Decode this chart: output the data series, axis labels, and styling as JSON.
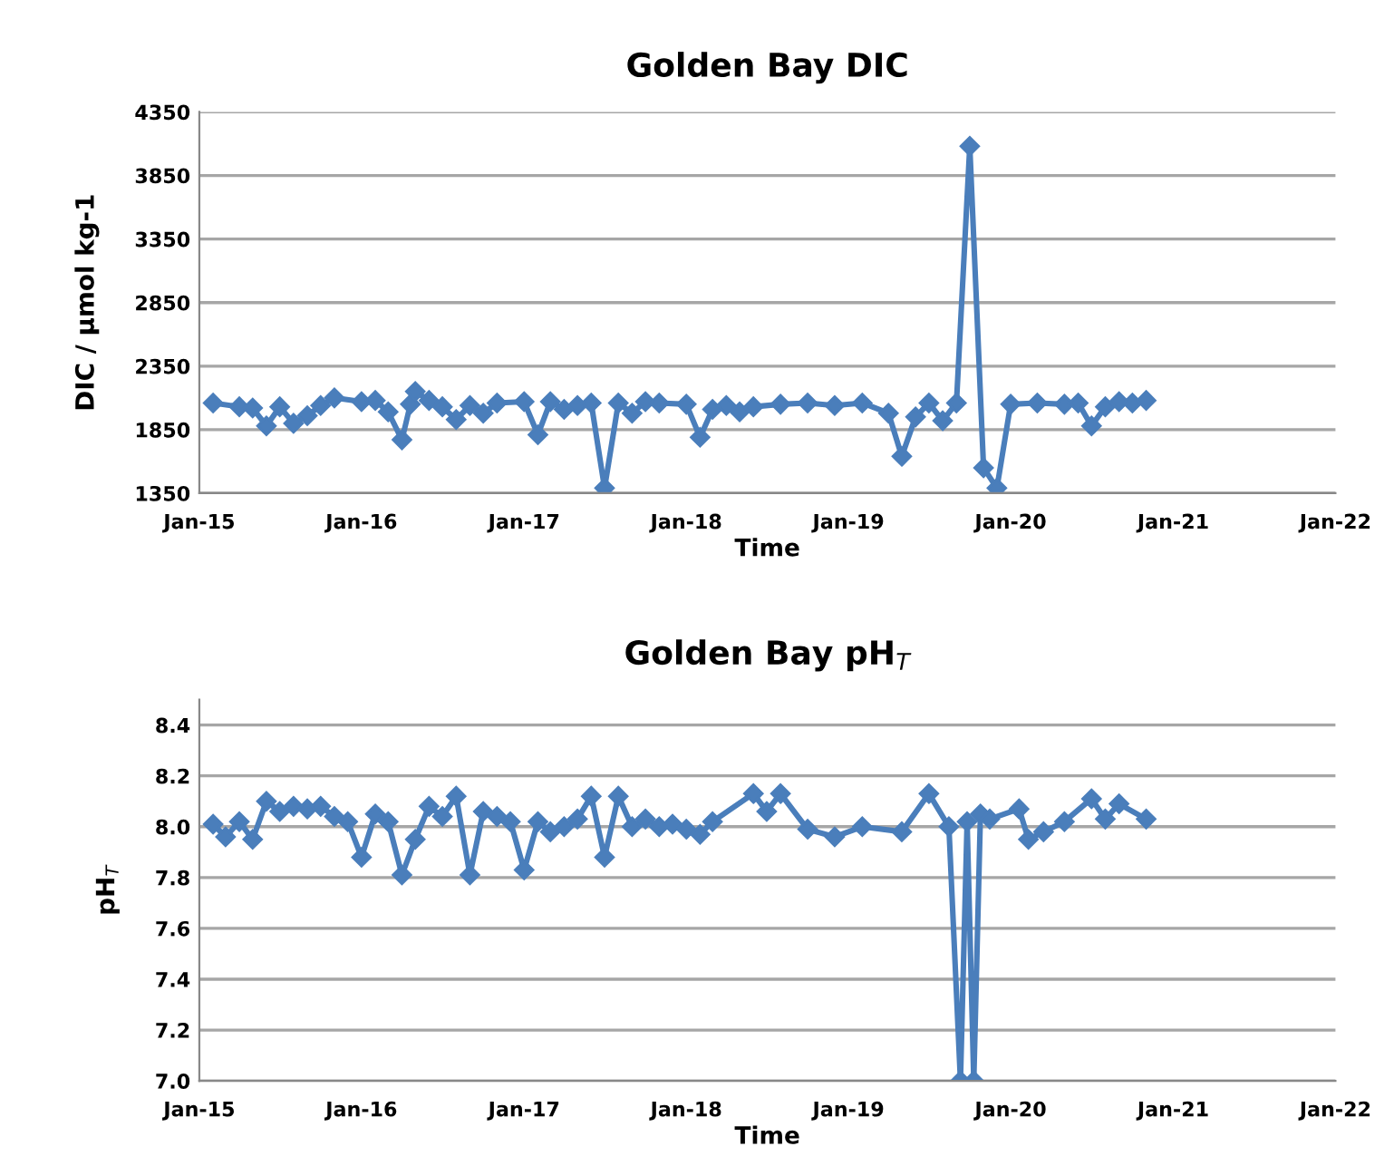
{
  "chart_data": [
    {
      "type": "line",
      "title": "Golden Bay DIC",
      "xlabel": "Time",
      "ylabel": "DIC / µmol kg-1",
      "marker": "diamond",
      "line_style": "solid",
      "grid": "y",
      "legend": false,
      "xlim": [
        "2015-01-01",
        "2022-01-01"
      ],
      "xticks": [
        {
          "value": "2015-01-01",
          "label": "Jan-15"
        },
        {
          "value": "2016-01-01",
          "label": "Jan-16"
        },
        {
          "value": "2017-01-01",
          "label": "Jan-17"
        },
        {
          "value": "2018-01-01",
          "label": "Jan-18"
        },
        {
          "value": "2019-01-01",
          "label": "Jan-19"
        },
        {
          "value": "2020-01-01",
          "label": "Jan-20"
        },
        {
          "value": "2021-01-01",
          "label": "Jan-21"
        },
        {
          "value": "2022-01-01",
          "label": "Jan-22"
        }
      ],
      "ylim": [
        1350,
        4350
      ],
      "yticks": [
        1350,
        1850,
        2350,
        2850,
        3350,
        3850,
        4350
      ],
      "series": [
        {
          "color": "#4a7ebb",
          "x": [
            "2015-02-01",
            "2015-04-01",
            "2015-05-01",
            "2015-06-01",
            "2015-07-01",
            "2015-08-01",
            "2015-09-01",
            "2015-10-01",
            "2015-11-01",
            "2016-01-01",
            "2016-02-01",
            "2016-03-01",
            "2016-04-01",
            "2016-04-20",
            "2016-05-01",
            "2016-06-01",
            "2016-07-01",
            "2016-08-01",
            "2016-09-01",
            "2016-10-01",
            "2016-11-01",
            "2017-01-01",
            "2017-02-01",
            "2017-03-01",
            "2017-04-01",
            "2017-05-01",
            "2017-06-01",
            "2017-07-01",
            "2017-08-01",
            "2017-09-01",
            "2017-10-01",
            "2017-11-01",
            "2018-01-01",
            "2018-02-01",
            "2018-03-01",
            "2018-04-01",
            "2018-05-01",
            "2018-06-01",
            "2018-08-01",
            "2018-10-01",
            "2018-12-01",
            "2019-02-01",
            "2019-04-01",
            "2019-05-01",
            "2019-06-01",
            "2019-07-01",
            "2019-08-01",
            "2019-09-01",
            "2019-10-01",
            "2019-11-01",
            "2019-12-01",
            "2020-01-01",
            "2020-03-01",
            "2020-05-01",
            "2020-06-01",
            "2020-07-01",
            "2020-08-01",
            "2020-09-01",
            "2020-10-01",
            "2020-11-01"
          ],
          "values": [
            2060,
            2030,
            2020,
            1880,
            2030,
            1900,
            1960,
            2040,
            2100,
            2070,
            2080,
            1990,
            1770,
            2050,
            2150,
            2080,
            2030,
            1930,
            2040,
            1980,
            2060,
            2070,
            1810,
            2070,
            2010,
            2040,
            2060,
            1390,
            2060,
            1980,
            2070,
            2060,
            2050,
            1790,
            2010,
            2040,
            1990,
            2030,
            2050,
            2060,
            2040,
            2060,
            1980,
            1640,
            1950,
            2060,
            1920,
            2060,
            4080,
            1550,
            1390,
            2050,
            2060,
            2050,
            2060,
            1880,
            2030,
            2070,
            2060,
            2080
          ]
        }
      ]
    },
    {
      "type": "line",
      "title": "Golden Bay pH$_{T}$",
      "xlabel": "Time",
      "ylabel": "pH$_{T}$",
      "marker": "diamond",
      "line_style": "solid",
      "grid": "y",
      "legend": false,
      "xlim": [
        "2015-01-01",
        "2022-01-01"
      ],
      "xticks": [
        {
          "value": "2015-01-01",
          "label": "Jan-15"
        },
        {
          "value": "2016-01-01",
          "label": "Jan-16"
        },
        {
          "value": "2017-01-01",
          "label": "Jan-17"
        },
        {
          "value": "2018-01-01",
          "label": "Jan-18"
        },
        {
          "value": "2019-01-01",
          "label": "Jan-19"
        },
        {
          "value": "2020-01-01",
          "label": "Jan-20"
        },
        {
          "value": "2021-01-01",
          "label": "Jan-21"
        },
        {
          "value": "2022-01-01",
          "label": "Jan-22"
        }
      ],
      "ylim": [
        7.0,
        8.5
      ],
      "yticks": [
        {
          "value": 7.0,
          "label": "7.0"
        },
        7.2,
        7.4,
        7.6,
        7.8,
        {
          "value": 8.0,
          "label": "8.0"
        },
        8.2,
        8.4
      ],
      "series": [
        {
          "color": "#4a7ebb",
          "x": [
            "2015-02-01",
            "2015-03-01",
            "2015-04-01",
            "2015-05-01",
            "2015-06-01",
            "2015-07-01",
            "2015-08-01",
            "2015-09-01",
            "2015-10-01",
            "2015-11-01",
            "2015-12-01",
            "2016-01-01",
            "2016-02-01",
            "2016-03-01",
            "2016-04-01",
            "2016-05-01",
            "2016-06-01",
            "2016-07-01",
            "2016-08-01",
            "2016-09-01",
            "2016-10-01",
            "2016-11-01",
            "2016-12-01",
            "2017-01-01",
            "2017-02-01",
            "2017-03-01",
            "2017-04-01",
            "2017-05-01",
            "2017-06-01",
            "2017-07-01",
            "2017-08-01",
            "2017-09-01",
            "2017-10-01",
            "2017-11-01",
            "2017-12-01",
            "2018-01-01",
            "2018-02-01",
            "2018-03-01",
            "2018-06-01",
            "2018-07-01",
            "2018-08-01",
            "2018-10-01",
            "2018-12-01",
            "2019-02-01",
            "2019-05-01",
            "2019-07-01",
            "2019-08-15",
            "2019-09-10",
            "2019-09-25",
            "2019-10-10",
            "2019-10-25",
            "2019-11-15",
            "2020-01-20",
            "2020-02-10",
            "2020-03-15",
            "2020-05-01",
            "2020-07-01",
            "2020-08-01",
            "2020-09-01",
            "2020-11-01"
          ],
          "values": [
            8.01,
            7.96,
            8.02,
            7.95,
            8.1,
            8.06,
            8.08,
            8.07,
            8.08,
            8.04,
            8.02,
            7.88,
            8.05,
            8.02,
            7.81,
            7.95,
            8.08,
            8.04,
            8.12,
            7.81,
            8.06,
            8.04,
            8.02,
            7.83,
            8.02,
            7.98,
            8.0,
            8.03,
            8.12,
            7.88,
            8.12,
            8.0,
            8.03,
            8.0,
            8.01,
            7.99,
            7.97,
            8.02,
            8.13,
            8.06,
            8.13,
            7.99,
            7.96,
            8.0,
            7.98,
            8.13,
            8.0,
            7.0,
            8.02,
            7.0,
            8.05,
            8.03,
            8.07,
            7.95,
            7.98,
            8.02,
            8.11,
            8.03,
            8.09,
            8.03
          ]
        }
      ]
    }
  ]
}
